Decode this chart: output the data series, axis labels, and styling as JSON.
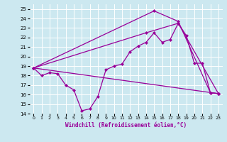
{
  "xlabel": "Windchill (Refroidissement éolien,°C)",
  "background_color": "#cce8f0",
  "grid_color": "#ffffff",
  "line_color": "#990099",
  "marker": "D",
  "markersize": 2.0,
  "linewidth": 0.9,
  "xlim": [
    -0.5,
    23.5
  ],
  "ylim": [
    14,
    25.5
  ],
  "xticks": [
    0,
    1,
    2,
    3,
    4,
    5,
    6,
    7,
    8,
    9,
    10,
    11,
    12,
    13,
    14,
    15,
    16,
    17,
    18,
    19,
    20,
    21,
    22,
    23
  ],
  "yticks": [
    14,
    15,
    16,
    17,
    18,
    19,
    20,
    21,
    22,
    23,
    24,
    25
  ],
  "lines": [
    {
      "x": [
        0,
        1,
        2,
        3,
        4,
        5,
        6,
        7,
        8,
        9,
        10,
        11,
        12,
        13,
        14,
        15,
        16,
        17,
        18,
        19,
        20,
        21,
        22,
        23
      ],
      "y": [
        18.8,
        18.0,
        18.3,
        18.2,
        17.0,
        16.5,
        14.3,
        14.5,
        15.8,
        18.6,
        19.0,
        19.2,
        20.5,
        21.1,
        21.5,
        22.5,
        21.5,
        21.8,
        23.5,
        22.2,
        19.3,
        19.3,
        16.2,
        16.1
      ]
    },
    {
      "x": [
        0,
        23
      ],
      "y": [
        18.8,
        16.1
      ],
      "has_markers": false
    },
    {
      "x": [
        0,
        14,
        18,
        23
      ],
      "y": [
        18.8,
        22.5,
        23.5,
        16.1
      ],
      "has_markers": false
    },
    {
      "x": [
        0,
        15,
        18,
        22,
        23
      ],
      "y": [
        18.8,
        24.8,
        23.7,
        16.2,
        16.1
      ],
      "has_markers": false
    }
  ]
}
